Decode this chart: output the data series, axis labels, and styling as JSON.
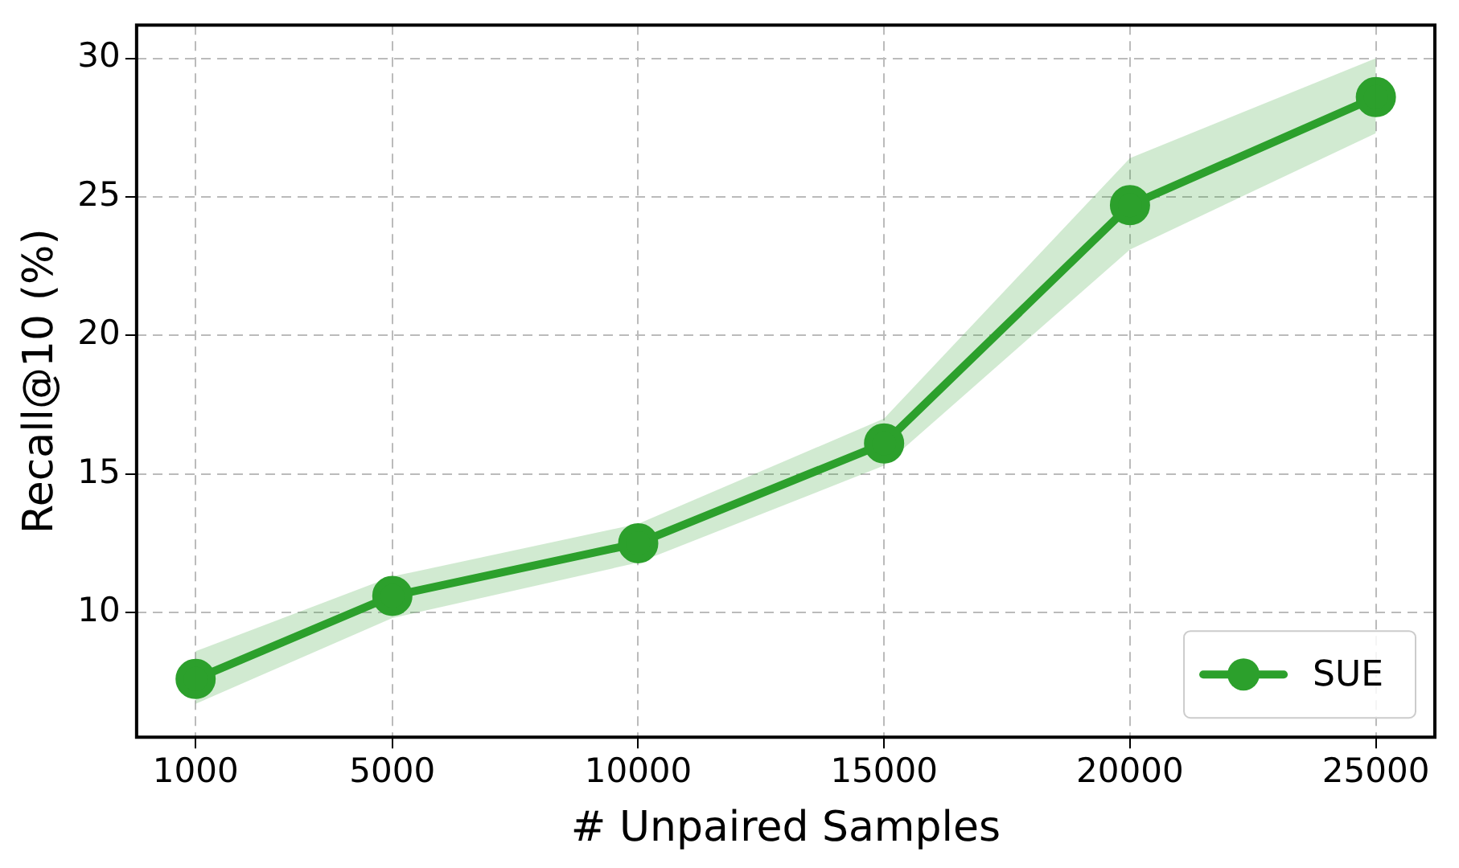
{
  "chart_data": {
    "type": "line",
    "xlabel": "# Unpaired Samples",
    "ylabel": "Recall@10 (%)",
    "x": [
      1000,
      5000,
      10000,
      15000,
      20000,
      25000
    ],
    "series": [
      {
        "name": "SUE",
        "color": "#2ca02c",
        "values": [
          7.6,
          10.6,
          12.5,
          16.1,
          24.7,
          28.6
        ],
        "lower": [
          6.7,
          9.8,
          11.8,
          15.3,
          23.1,
          27.3
        ],
        "upper": [
          8.6,
          11.3,
          13.2,
          17.0,
          26.4,
          30.0
        ]
      }
    ],
    "xlim": [
      -200,
      26200
    ],
    "xticks": [
      1000,
      5000,
      10000,
      15000,
      20000,
      25000
    ],
    "ylim": [
      5.5,
      31.2
    ],
    "yticks": [
      10,
      15,
      20,
      25,
      30
    ],
    "grid": true,
    "legend": "bottom right",
    "marker": "circle",
    "line_style": "solid"
  }
}
